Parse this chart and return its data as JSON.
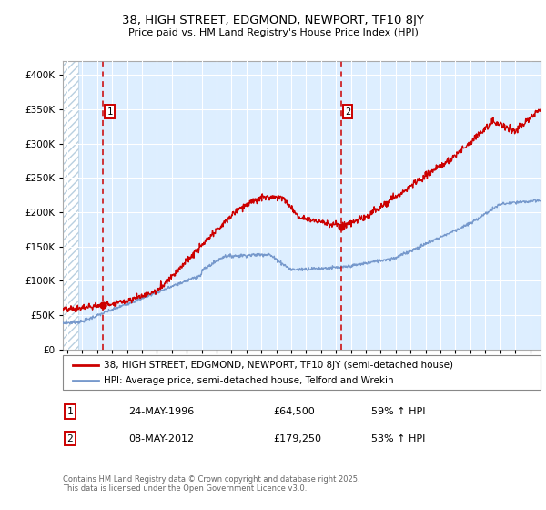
{
  "title1": "38, HIGH STREET, EDGMOND, NEWPORT, TF10 8JY",
  "title2": "Price paid vs. HM Land Registry's House Price Index (HPI)",
  "bg_color": "#ddeeff",
  "hatch_color": "#b8cfe0",
  "line1_color": "#cc0000",
  "line2_color": "#7799cc",
  "sale1_date_num": 1996.39,
  "sale1_price": 64500,
  "sale2_date_num": 2012.35,
  "sale2_price": 179250,
  "ylim": [
    0,
    420000
  ],
  "xlim_start": 1993.7,
  "xlim_end": 2025.7,
  "legend_line1": "38, HIGH STREET, EDGMOND, NEWPORT, TF10 8JY (semi-detached house)",
  "legend_line2": "HPI: Average price, semi-detached house, Telford and Wrekin",
  "note1_num": "1",
  "note1_date": "24-MAY-1996",
  "note1_price": "£64,500",
  "note1_hpi": "59% ↑ HPI",
  "note2_num": "2",
  "note2_date": "08-MAY-2012",
  "note2_price": "£179,250",
  "note2_hpi": "53% ↑ HPI",
  "footer": "Contains HM Land Registry data © Crown copyright and database right 2025.\nThis data is licensed under the Open Government Licence v3.0."
}
